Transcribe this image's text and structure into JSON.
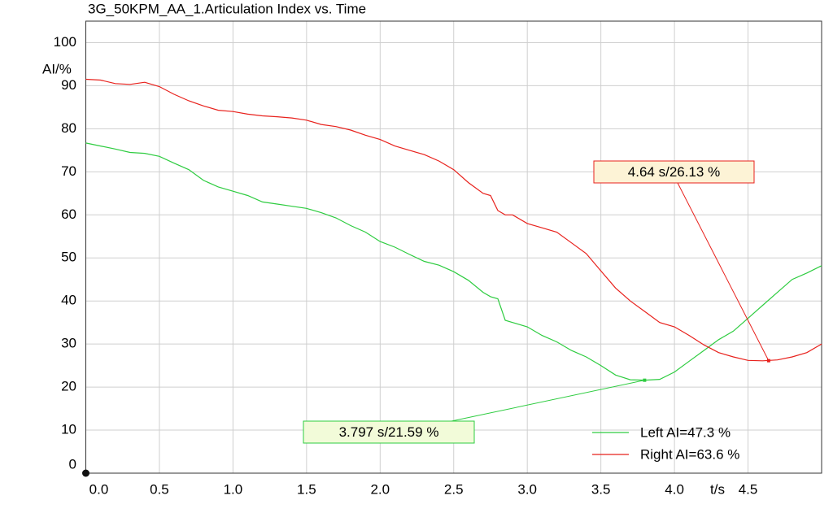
{
  "chart_data": {
    "type": "line",
    "title": "3G_50KPM_AA_1.Articulation Index vs. Time",
    "x_label": "t/s",
    "y_label": "AI/%",
    "x": [
      0,
      0.1,
      0.2,
      0.3,
      0.4,
      0.5,
      0.6,
      0.7,
      0.8,
      0.9,
      1.0,
      1.1,
      1.2,
      1.3,
      1.4,
      1.5,
      1.6,
      1.7,
      1.8,
      1.9,
      2.0,
      2.1,
      2.2,
      2.3,
      2.4,
      2.5,
      2.6,
      2.7,
      2.75,
      2.8,
      2.85,
      2.9,
      3.0,
      3.1,
      3.2,
      3.3,
      3.4,
      3.5,
      3.6,
      3.7,
      3.8,
      3.9,
      4.0,
      4.1,
      4.2,
      4.3,
      4.4,
      4.5,
      4.6,
      4.7,
      4.8,
      4.9,
      5.0
    ],
    "series": [
      {
        "name": "Left AI=47.3 %",
        "color": "#2ecc40",
        "values": [
          76.7,
          76,
          75.3,
          74.5,
          74.3,
          73.6,
          72,
          70.5,
          68,
          66.5,
          65.5,
          64.5,
          63,
          62.5,
          62,
          61.5,
          60.5,
          59.3,
          57.5,
          56,
          53.8,
          52.5,
          50.8,
          49.2,
          48.3,
          46.8,
          44.8,
          42,
          41,
          40.5,
          35.5,
          35,
          34,
          32,
          30.5,
          28.5,
          27,
          25,
          22.8,
          21.7,
          21.6,
          21.8,
          23.5,
          26,
          28.5,
          31,
          33,
          36,
          39,
          42,
          45,
          46.5,
          48.2
        ]
      },
      {
        "name": "Right AI=63.6 %",
        "color": "#e8211c",
        "values": [
          91.5,
          91.3,
          90.5,
          90.3,
          90.8,
          89.8,
          88,
          86.5,
          85.3,
          84.3,
          84,
          83.4,
          83,
          82.8,
          82.5,
          82,
          81,
          80.5,
          79.7,
          78.5,
          77.5,
          76,
          75,
          74,
          72.5,
          70.5,
          67.5,
          65,
          64.5,
          61,
          60,
          60,
          58,
          57,
          56,
          53.5,
          51,
          47,
          43,
          40,
          37.5,
          35,
          34,
          32,
          29.8,
          28,
          27,
          26.2,
          26.1,
          26.3,
          27,
          28,
          30
        ]
      }
    ],
    "annotations": [
      {
        "text": "3.797 s/21.59 %",
        "x": 3.797,
        "y": 21.59,
        "color": "#2ecc40",
        "fill": "#f2fbd9"
      },
      {
        "text": "4.64 s/26.13 %",
        "x": 4.64,
        "y": 26.13,
        "color": "#e8211c",
        "fill": "#fdf3d6"
      }
    ],
    "xlim": [
      0,
      5
    ],
    "ylim": [
      0,
      105
    ],
    "xticks": [
      {
        "value": 0,
        "label": "0.0"
      },
      0.5,
      {
        "value": 1,
        "label": "1.0"
      },
      1.5,
      {
        "value": 2,
        "label": "2.0"
      },
      2.5,
      {
        "value": 3,
        "label": "3.0"
      },
      3.5,
      {
        "value": 4,
        "label": "4.0"
      },
      4.5
    ],
    "yticks": [
      0,
      10,
      20,
      30,
      40,
      50,
      60,
      70,
      80,
      90,
      100
    ],
    "grid": true,
    "legend": "lower-right"
  }
}
